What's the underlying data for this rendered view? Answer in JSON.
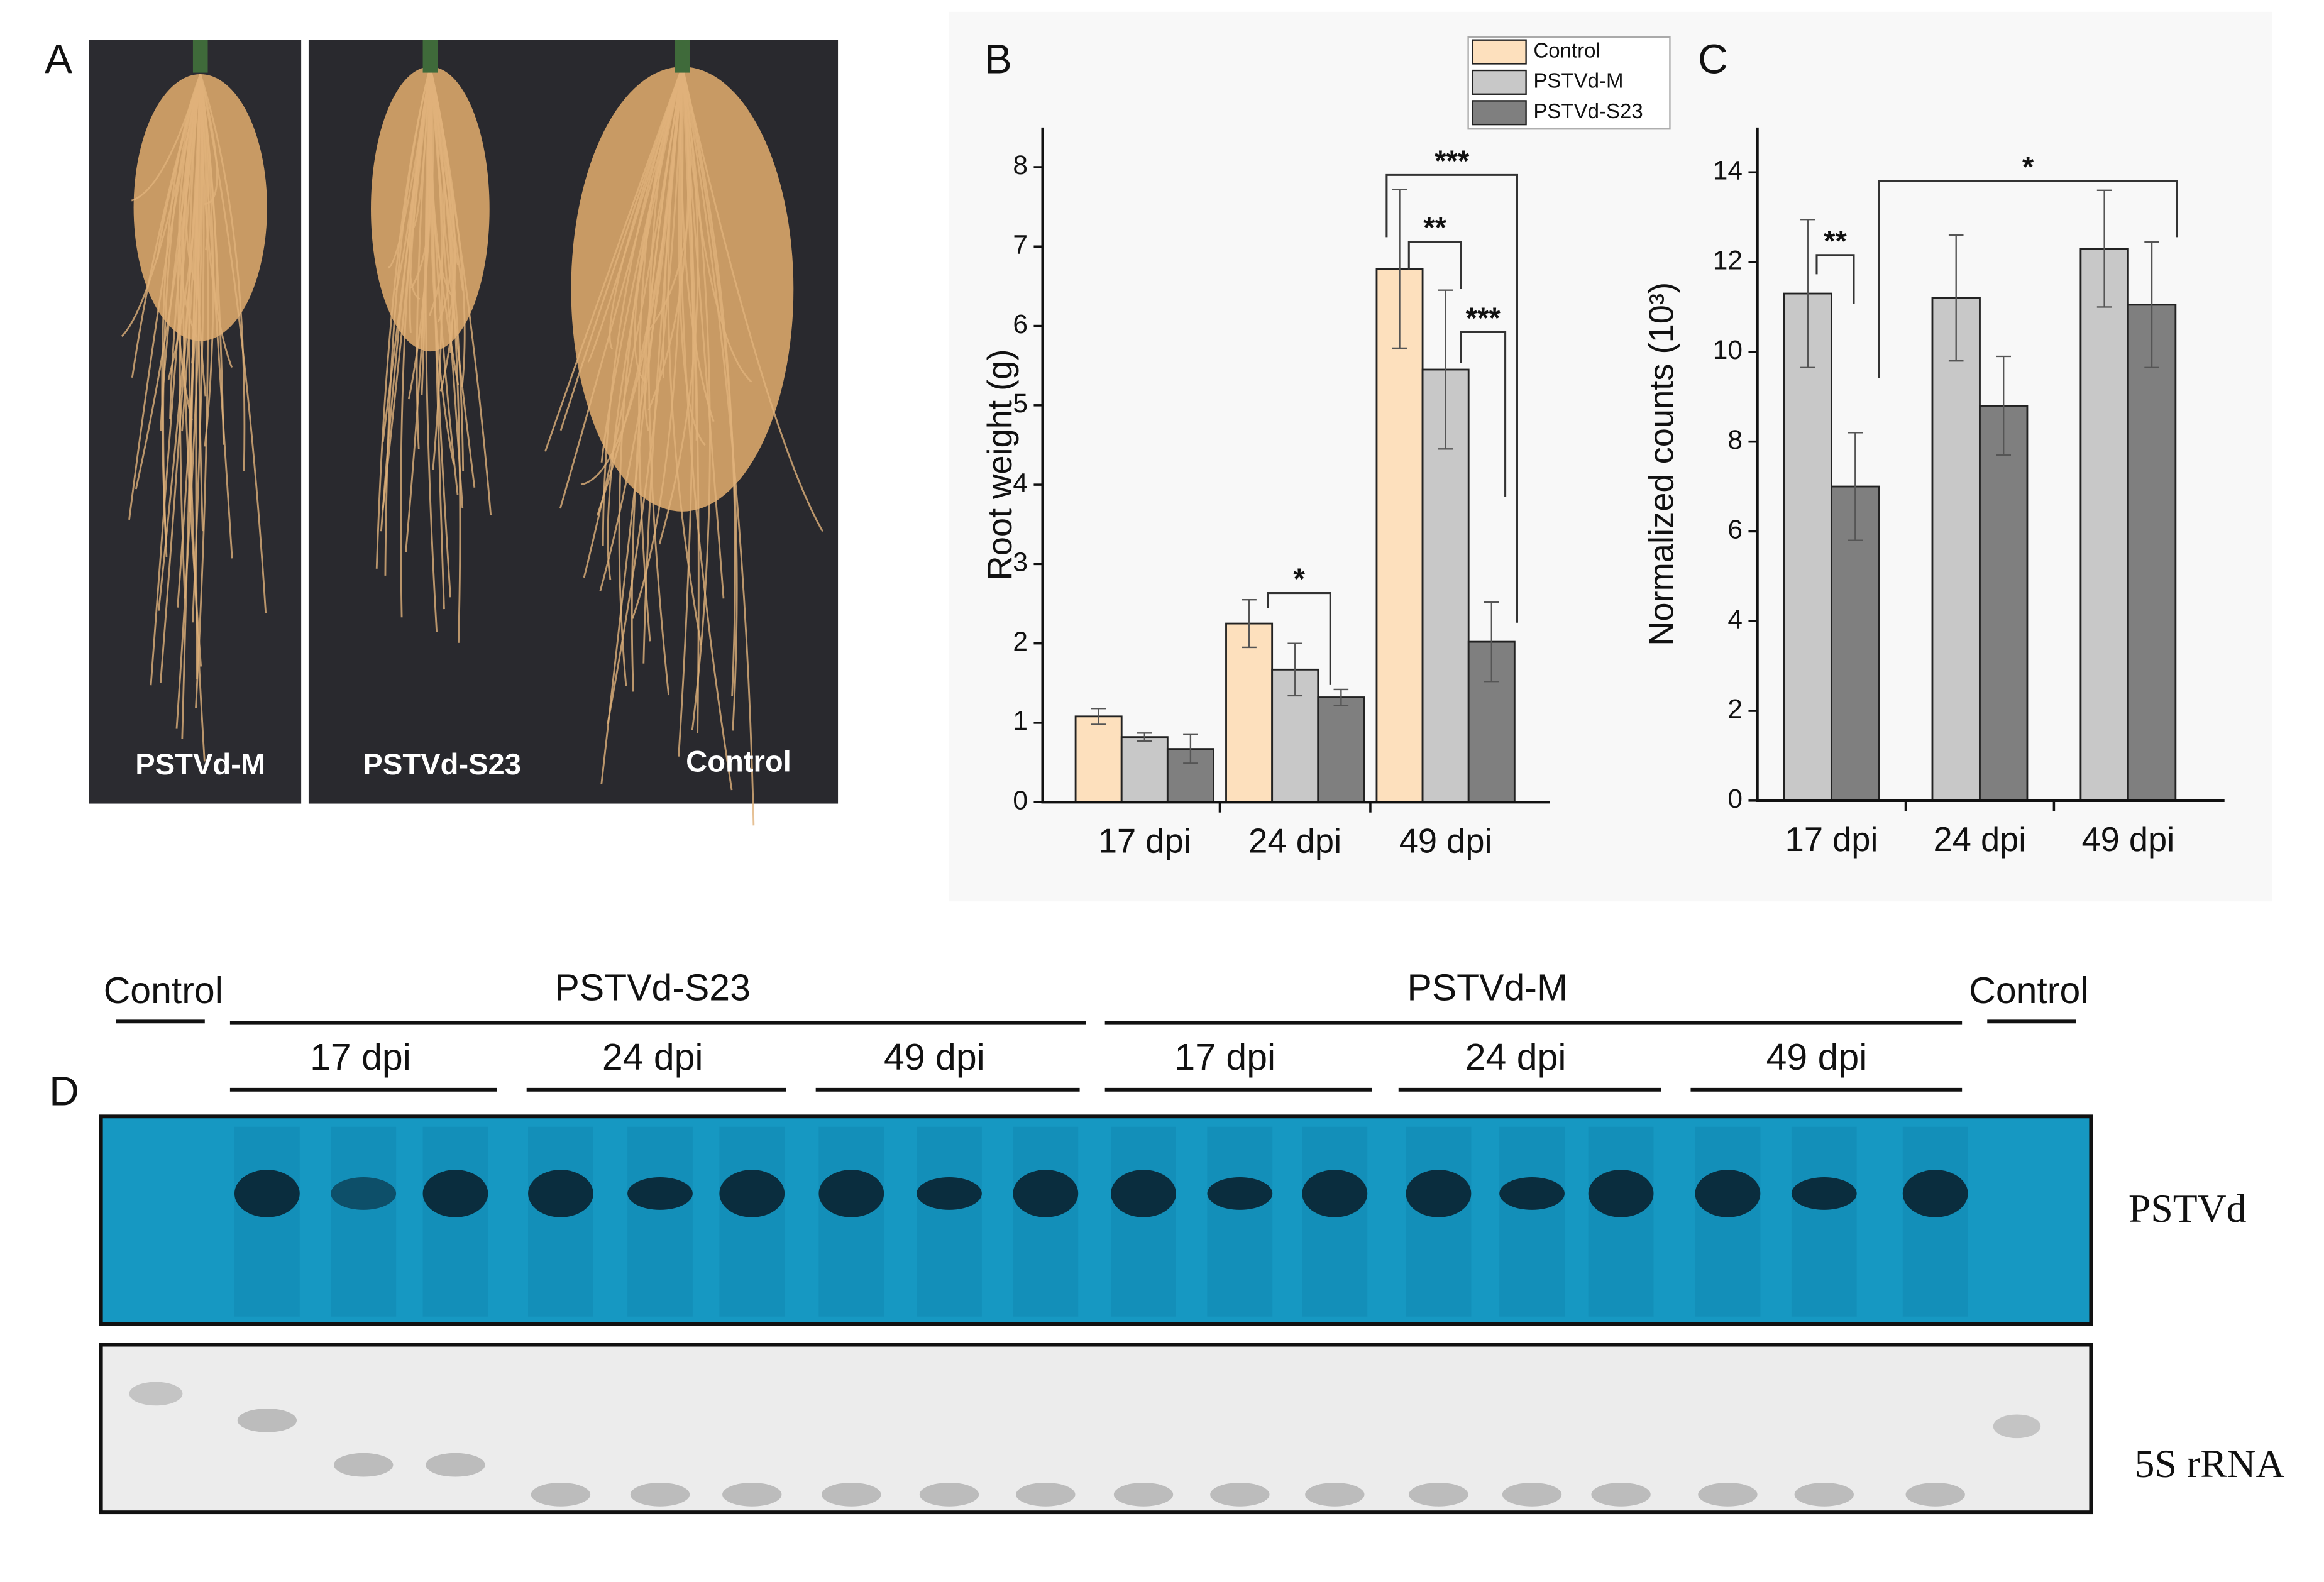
{
  "chart_data": [
    {
      "type": "bar",
      "letter": "B",
      "y_label": "Root weight (g)",
      "categories": [
        "17 dpi",
        "24 dpi",
        "49 dpi"
      ],
      "series": [
        {
          "name": "Control",
          "color": "#fde0bd",
          "values": [
            1.08,
            2.25,
            6.72
          ],
          "errors": [
            0.1,
            0.3,
            1.0
          ]
        },
        {
          "name": "PSTVd-M",
          "color": "#c8c8c8",
          "values": [
            0.82,
            1.67,
            5.45
          ],
          "errors": [
            0.05,
            0.33,
            1.0
          ]
        },
        {
          "name": "PSTVd-S23",
          "color": "#7f7f7f",
          "values": [
            0.67,
            1.32,
            2.02
          ],
          "errors": [
            0.18,
            0.1,
            0.5
          ]
        }
      ],
      "ylim": [
        0,
        8.5
      ],
      "yticks": [
        0,
        1,
        2,
        3,
        4,
        5,
        6,
        7,
        8
      ],
      "legend": "upper right",
      "significance": [
        "*",
        "***",
        "**",
        "***"
      ]
    },
    {
      "type": "bar",
      "letter": "C",
      "y_label": "Normalized counts (10³)",
      "categories": [
        "17 dpi",
        "24 dpi",
        "49 dpi"
      ],
      "series": [
        {
          "color": "#c8c8c8",
          "values": [
            11.3,
            11.2,
            12.3
          ],
          "errors": [
            1.65,
            1.4,
            1.3
          ]
        },
        {
          "color": "#7f7f7f",
          "values": [
            7.0,
            8.8,
            11.05
          ],
          "errors": [
            1.2,
            1.1,
            1.4
          ]
        }
      ],
      "ylim": [
        0,
        15
      ],
      "yticks": [
        0,
        2,
        4,
        6,
        8,
        10,
        12,
        14
      ],
      "significance": [
        "**",
        "*"
      ]
    }
  ],
  "panel_a": {
    "letter": "A",
    "labels": [
      "PSTVd-M",
      "PSTVd-S23",
      "Control"
    ]
  },
  "panel_d": {
    "letter": "D",
    "groups": [
      "Control",
      "PSTVd-S23",
      "PSTVd-M",
      "Control"
    ],
    "timepoints": [
      "17 dpi",
      "24 dpi",
      "49 dpi",
      "17 dpi",
      "24 dpi",
      "49 dpi"
    ],
    "blots": [
      "PSTVd",
      "5S rRNA"
    ]
  }
}
